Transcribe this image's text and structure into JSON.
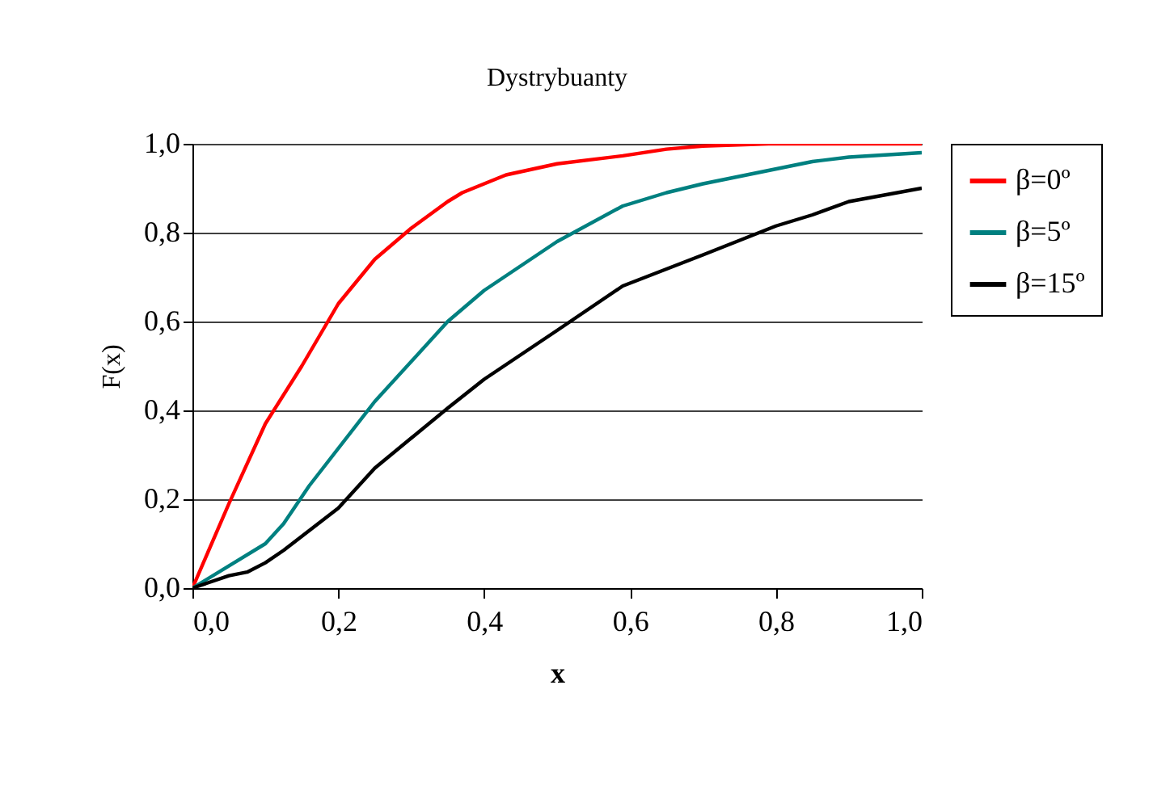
{
  "chart_data": {
    "type": "line",
    "title": "Dystrybuanty",
    "xlabel": "x",
    "ylabel": "F(x)",
    "xlim": [
      0,
      1
    ],
    "ylim": [
      0,
      1
    ],
    "xticks": [
      {
        "value": 0,
        "label": "0,0"
      },
      {
        "value": 0.2,
        "label": "0,2"
      },
      {
        "value": 0.4,
        "label": "0,4"
      },
      {
        "value": 0.6,
        "label": "0,6"
      },
      {
        "value": 0.8,
        "label": "0,8"
      },
      {
        "value": 1,
        "label": "1,0"
      }
    ],
    "yticks": [
      {
        "value": 0,
        "label": "0,0"
      },
      {
        "value": 0.2,
        "label": "0,2"
      },
      {
        "value": 0.4,
        "label": "0,4"
      },
      {
        "value": 0.6,
        "label": "0,6"
      },
      {
        "value": 0.8,
        "label": "0,8"
      },
      {
        "value": 1,
        "label": "1,0"
      }
    ],
    "grid": "y",
    "legend": "right",
    "marker": "none",
    "line_style": "solid",
    "series": [
      {
        "name": "β=0º",
        "color": "#ff0000",
        "x": [
          0,
          0.05,
          0.1,
          0.15,
          0.2,
          0.25,
          0.3,
          0.35,
          0.37,
          0.4,
          0.43,
          0.5,
          0.59,
          0.65,
          0.7,
          0.79,
          1
        ],
        "values": [
          0,
          0.19,
          0.37,
          0.5,
          0.64,
          0.74,
          0.81,
          0.87,
          0.89,
          0.91,
          0.93,
          0.955,
          0.973,
          0.988,
          0.995,
          1,
          1
        ]
      },
      {
        "name": "β=5º",
        "color": "#008080",
        "x": [
          0,
          0.1,
          0.125,
          0.16,
          0.25,
          0.35,
          0.4,
          0.5,
          0.59,
          0.65,
          0.7,
          0.79,
          0.85,
          0.9,
          1
        ],
        "values": [
          0,
          0.1,
          0.145,
          0.23,
          0.42,
          0.6,
          0.67,
          0.78,
          0.86,
          0.89,
          0.91,
          0.94,
          0.96,
          0.97,
          0.98
        ]
      },
      {
        "name": "β=15º",
        "color": "#000000",
        "x": [
          0,
          0.05,
          0.075,
          0.1,
          0.125,
          0.2,
          0.25,
          0.35,
          0.4,
          0.5,
          0.59,
          0.7,
          0.8,
          0.85,
          0.9,
          1
        ],
        "values": [
          0,
          0.028,
          0.036,
          0.057,
          0.085,
          0.18,
          0.27,
          0.405,
          0.47,
          0.58,
          0.68,
          0.75,
          0.815,
          0.84,
          0.87,
          0.9
        ]
      }
    ]
  }
}
